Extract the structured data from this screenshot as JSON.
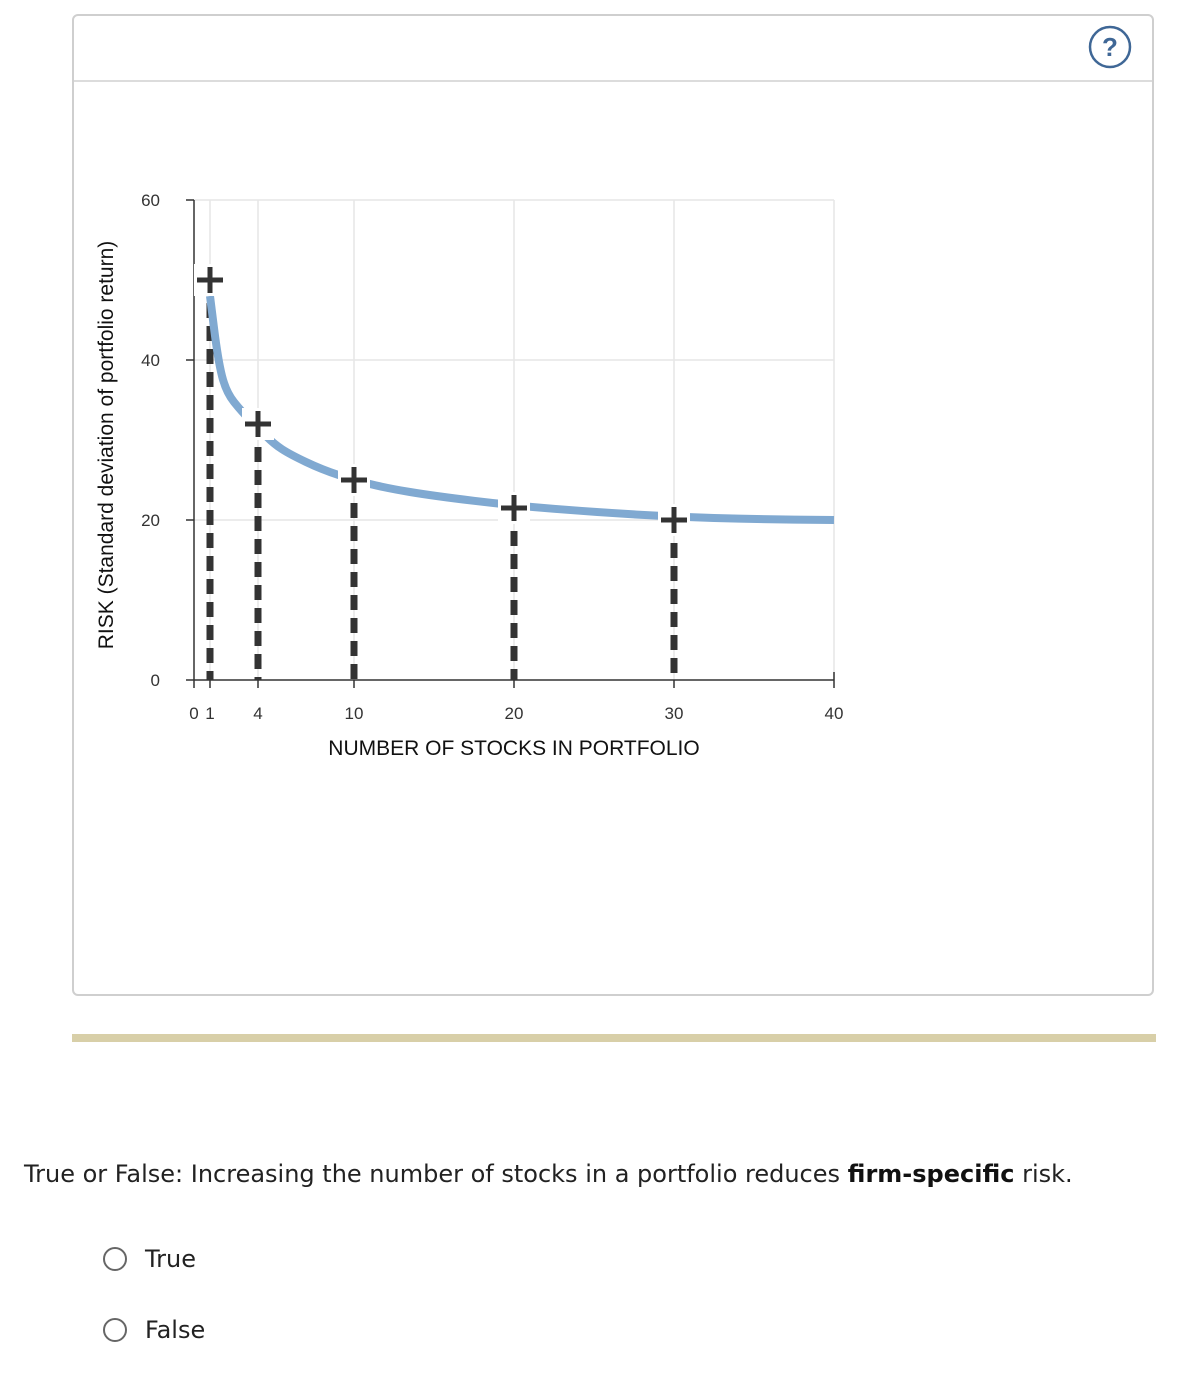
{
  "question": {
    "text_before": "True or False: Increasing the number of stocks in a portfolio reduces ",
    "bold_text": "firm-specific",
    "text_after": " risk.",
    "options": [
      {
        "label": "True",
        "selected": false
      },
      {
        "label": "False",
        "selected": false
      }
    ]
  },
  "help": {
    "icon": "question-circle-icon",
    "symbol": "?"
  },
  "colors": {
    "curve": "#80a9d1",
    "markers": "#333333",
    "divider": "#d8cfa8",
    "help": "#3f6796"
  },
  "chart_data": {
    "type": "line",
    "xlabel": "NUMBER OF STOCKS IN PORTFOLIO",
    "ylabel": "RISK (Standard deviation of portfolio return)",
    "xlim": [
      0,
      40
    ],
    "ylim": [
      0,
      60
    ],
    "x_ticks": [
      0,
      1,
      4,
      10,
      20,
      30,
      40
    ],
    "y_ticks": [
      0,
      20,
      40,
      60
    ],
    "x_gridlines": [
      1,
      4,
      10,
      20,
      30,
      40
    ],
    "y_gridlines": [
      20,
      40,
      60
    ],
    "grid": true,
    "curve": {
      "x": [
        1,
        1.5,
        2,
        3,
        4,
        5,
        6,
        8,
        10,
        12,
        15,
        20,
        25,
        30,
        35,
        40
      ],
      "y": [
        48,
        40,
        36,
        33.5,
        31.5,
        29.5,
        28.2,
        26.3,
        25,
        24,
        23,
        21.8,
        21,
        20.4,
        20.1,
        20
      ]
    },
    "markers": [
      {
        "x": 1,
        "y": 50
      },
      {
        "x": 4,
        "y": 32
      },
      {
        "x": 10,
        "y": 25
      },
      {
        "x": 20,
        "y": 21.5
      },
      {
        "x": 30,
        "y": 20
      }
    ]
  }
}
